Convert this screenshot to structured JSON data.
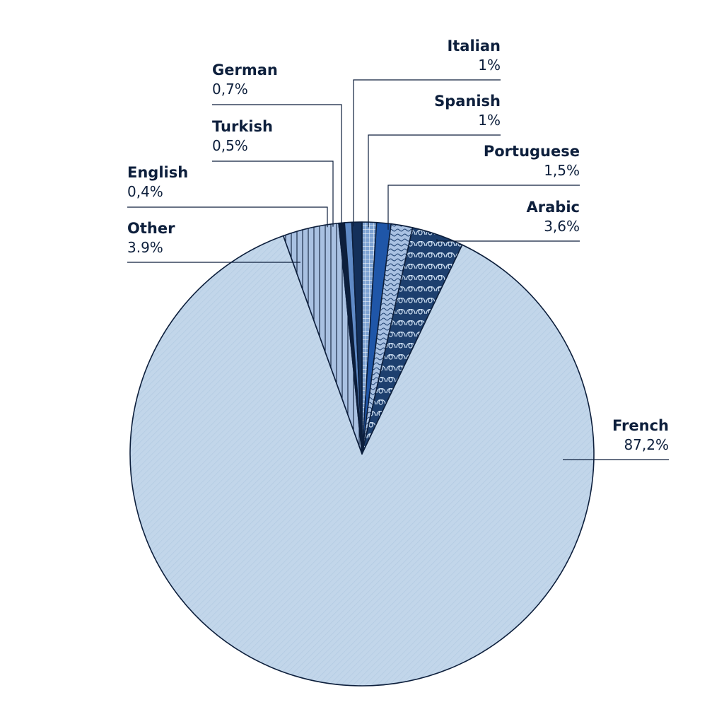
{
  "chart_data": {
    "type": "pie",
    "title": "",
    "slices": [
      {
        "label": "Italian",
        "value": 1.0,
        "value_label": "1%",
        "color": "#7ea3d3",
        "pattern": "grid"
      },
      {
        "label": "Spanish",
        "value": 1.0,
        "value_label": "1%",
        "color": "#1f56a8",
        "pattern": "solid"
      },
      {
        "label": "Portuguese",
        "value": 1.5,
        "value_label": "1,5%",
        "color": "#a9c1e2",
        "pattern": "waves"
      },
      {
        "label": "Arabic",
        "value": 3.6,
        "value_label": "3,6%",
        "color": "#1d3f6e",
        "pattern": "loops"
      },
      {
        "label": "French",
        "value": 87.2,
        "value_label": "87,2%",
        "color": "#c2d6ea",
        "pattern": "diagonal"
      },
      {
        "label": "Other",
        "value": 3.9,
        "value_label": "3.9%",
        "color": "#a9c1e2",
        "pattern": "vertical"
      },
      {
        "label": "English",
        "value": 0.4,
        "value_label": "0,4%",
        "color": "#0d1f3c",
        "pattern": "solid"
      },
      {
        "label": "Turkish",
        "value": 0.5,
        "value_label": "0,5%",
        "color": "#5f8ac6",
        "pattern": "solid"
      },
      {
        "label": "German",
        "value": 0.7,
        "value_label": "0,7%",
        "color": "#14305a",
        "pattern": "solid"
      }
    ],
    "start_angle_deg": 0,
    "direction": "clockwise",
    "stroke_color": "#0d1f3c",
    "text_color": "#0d1f3c"
  }
}
